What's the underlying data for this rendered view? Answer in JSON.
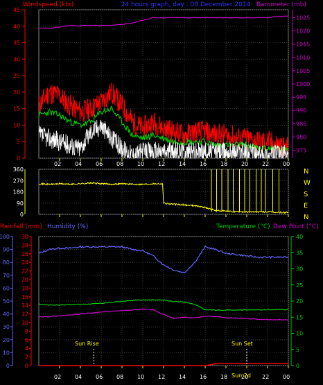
{
  "header": {
    "windspeed_label": "Windspeed (kts)",
    "title": "24 hours graph, day : 08 December 2014",
    "barometer_label": "Barometer (mb)"
  },
  "labels": {
    "rainfall": "Rainfall (mm)",
    "humidity": "Humidity (%)",
    "temperature": "Temperature (°C)",
    "dewpoint": "Dew Point (°C)",
    "sun_rise": "Sun Rise",
    "sun_set": "Sun Set",
    "sun_set_time": "Sun 2d"
  },
  "colors": {
    "windspeed": "#ff0000",
    "gust_avg": "#00cc00",
    "wind_white": "#ffffff",
    "barometer": "#cc00cc",
    "direction": "#ffff00",
    "humidity": "#6666ff",
    "temperature": "#00cc00",
    "dewpoint": "#cc00cc",
    "rainfall": "#ff0000",
    "axis": "#ffff00",
    "grid": "#333333"
  },
  "x_axis": {
    "ticks": [
      "02",
      "04",
      "06",
      "08",
      "10",
      "12",
      "14",
      "16",
      "18",
      "20",
      "22",
      "00"
    ]
  },
  "chart_data": [
    {
      "type": "line",
      "name": "wind-and-barometer",
      "x": [
        0,
        1,
        2,
        3,
        4,
        5,
        6,
        7,
        8,
        9,
        10,
        11,
        12,
        13,
        14,
        15,
        16,
        17,
        18,
        19,
        20,
        21,
        22,
        23,
        24
      ],
      "left_axis": {
        "label": "Windspeed (kts)",
        "ticks": [
          0,
          5,
          10,
          15,
          20,
          25,
          30,
          35,
          40,
          45
        ],
        "range": [
          0,
          45
        ]
      },
      "right_axis": {
        "label": "Barometer (mb)",
        "ticks": [
          975,
          980,
          985,
          990,
          995,
          1000,
          1005,
          1010,
          1015,
          1020,
          1025
        ],
        "range": [
          972,
          1028
        ]
      },
      "series": [
        {
          "name": "Windspeed (kts)",
          "axis": "left",
          "values": [
            16,
            20,
            19,
            16,
            14,
            15,
            17,
            20,
            16,
            11,
            9,
            11,
            9,
            8,
            7,
            8,
            8,
            7,
            7,
            6,
            6,
            5,
            5,
            4,
            3
          ]
        },
        {
          "axis": "left",
          "values": [
            13,
            14,
            13,
            11,
            10,
            11,
            14,
            15,
            11,
            7,
            6,
            7,
            6,
            5,
            5,
            5,
            5,
            4,
            4,
            4,
            4,
            3,
            3,
            3,
            2
          ]
        },
        {
          "axis": "left",
          "values": [
            7,
            6,
            5,
            4,
            3,
            8,
            10,
            6,
            3,
            1,
            2,
            2,
            2,
            2,
            2,
            2,
            2,
            2,
            2,
            2,
            2,
            1,
            1,
            1,
            1
          ]
        },
        {
          "name": "Barometer (mb)",
          "axis": "right",
          "values": [
            1021,
            1021,
            1021.5,
            1022,
            1022,
            1022,
            1022,
            1022,
            1022.5,
            1023,
            1024,
            1025,
            1025,
            1025,
            1025,
            1025,
            1025,
            1025,
            1025,
            1025,
            1025,
            1025,
            1025,
            1025.5,
            1025.5
          ]
        }
      ]
    },
    {
      "type": "line",
      "name": "wind-direction",
      "x": [
        0,
        1,
        2,
        3,
        4,
        5,
        6,
        7,
        8,
        9,
        10,
        11,
        11.9,
        12,
        13,
        14,
        15,
        16,
        17,
        18,
        19,
        20,
        21,
        22,
        23,
        24
      ],
      "left_axis": {
        "ticks": [
          0,
          90,
          180,
          270,
          360
        ],
        "range": [
          0,
          360
        ]
      },
      "right_axis": {
        "ticks": [
          "N",
          "W",
          "S",
          "E",
          "N"
        ]
      },
      "series": [
        {
          "values": [
            245,
            240,
            245,
            240,
            245,
            250,
            245,
            240,
            245,
            240,
            240,
            245,
            245,
            90,
            80,
            75,
            70,
            55,
            30,
            25,
            20,
            20,
            20,
            20,
            15,
            15
          ]
        }
      ],
      "spikes_x": [
        16.6,
        17.1,
        17.6,
        18.2,
        18.7,
        19.3,
        19.8,
        20.3,
        20.9,
        21.4,
        21.8,
        22.5,
        23.1
      ]
    },
    {
      "type": "line",
      "name": "humidity-temperature",
      "x": [
        0,
        1,
        2,
        3,
        4,
        5,
        6,
        7,
        8,
        9,
        10,
        11,
        12,
        13,
        14,
        15,
        16,
        17,
        18,
        19,
        20,
        21,
        22,
        23,
        24
      ],
      "axes": {
        "rainfall": {
          "label": "Rainfall (mm)",
          "ticks": [
            0,
            2,
            4,
            6,
            8,
            10,
            12,
            14,
            16,
            18,
            20,
            22,
            24,
            26,
            28,
            30
          ]
        },
        "humidity": {
          "label": "Humidity (%)",
          "ticks": [
            0,
            10,
            20,
            30,
            40,
            50,
            60,
            70,
            80,
            90,
            100
          ]
        },
        "temperature": {
          "label": "Temperature (°C)",
          "ticks": [
            0,
            5,
            10,
            15,
            20,
            25,
            30,
            35,
            40
          ]
        }
      },
      "series": [
        {
          "name": "Humidity (%)",
          "axis": "humidity",
          "values": [
            87,
            90,
            91,
            91,
            92,
            92,
            92,
            92,
            92,
            90,
            89,
            85,
            78,
            74,
            72,
            80,
            92,
            90,
            87,
            86,
            85,
            84,
            84,
            84,
            84
          ]
        },
        {
          "name": "Temperature (°C)",
          "axis": "temperature",
          "values": [
            19.0,
            18.8,
            18.8,
            18.9,
            19.0,
            19.1,
            19.3,
            19.6,
            19.9,
            20.2,
            20.4,
            20.4,
            20.3,
            19.9,
            19.7,
            18.9,
            17.3,
            17.2,
            17.2,
            17.2,
            17.3,
            17.3,
            17.3,
            17.4,
            17.4
          ]
        },
        {
          "name": "Dew Point (°C)",
          "axis": "temperature",
          "values": [
            15.0,
            15.2,
            15.4,
            15.7,
            16.0,
            16.3,
            16.6,
            16.8,
            17.0,
            17.2,
            17.5,
            17.3,
            15.8,
            14.6,
            15.0,
            14.8,
            15.3,
            15.2,
            14.8,
            14.7,
            14.6,
            14.4,
            14.3,
            14.2,
            14.2
          ]
        },
        {
          "name": "Rainfall (mm)",
          "axis": "rainfall",
          "values": [
            0,
            0,
            0,
            0,
            0,
            0,
            0,
            0,
            0,
            0,
            0,
            0,
            0,
            0,
            0,
            0,
            0,
            0.4,
            0.5,
            0.5,
            0.5,
            0.5,
            0.5,
            0.5,
            0.5
          ]
        }
      ],
      "sun_rise_hour": 5.3,
      "sun_set_hour": 20.0
    }
  ]
}
